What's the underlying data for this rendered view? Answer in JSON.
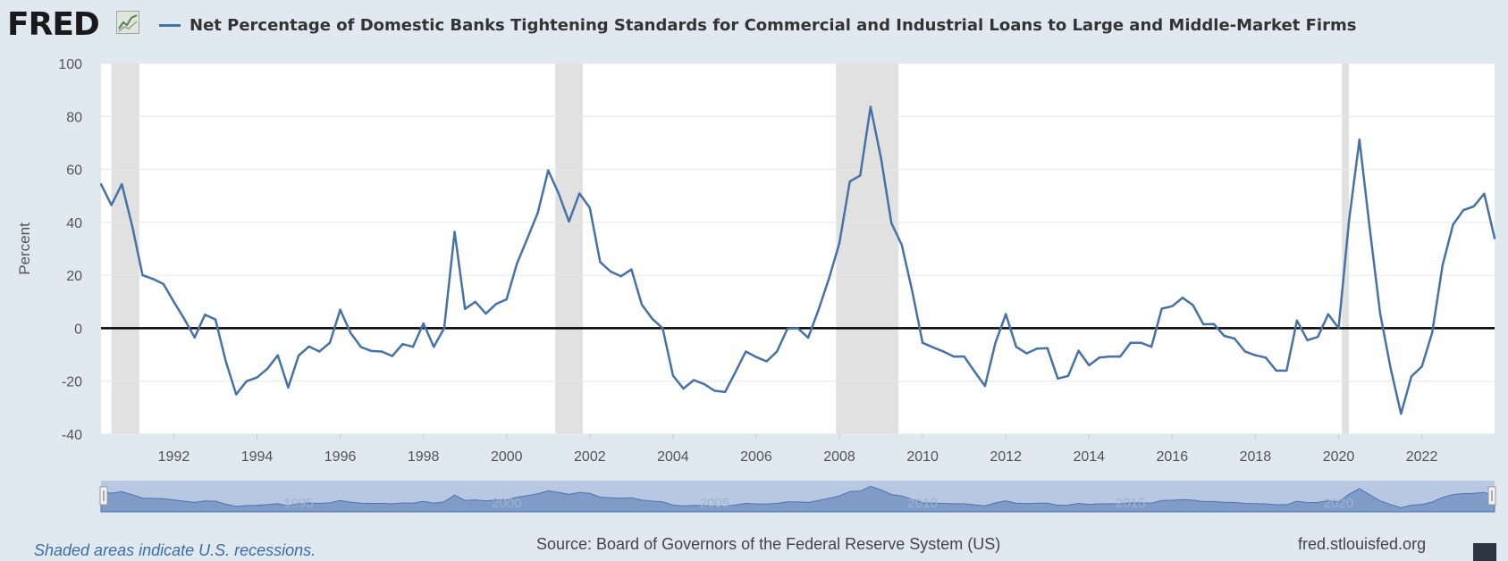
{
  "header": {
    "logo_text": "FRED",
    "title": "Net Percentage of Domestic Banks Tightening Standards for Commercial and Industrial Loans to Large and Middle-Market Firms"
  },
  "footer": {
    "recession_note": "Shaded areas indicate U.S. recessions.",
    "source": "Source: Board of Governors of the Federal Reserve System (US)",
    "site": "fred.stlouisfed.org"
  },
  "icons": {
    "logo_graph": "line-chart-icon",
    "fullscreen": "fullscreen-icon",
    "range_handles": "drag-handle-icon"
  },
  "colors": {
    "line": "#4572a7",
    "recession": "#e1e1e1",
    "background": "#e1e9f0",
    "zero_line": "#000000"
  },
  "chart_data": {
    "type": "line",
    "ylabel": "Percent",
    "ylim": [
      -40,
      100
    ],
    "yticks": [
      -40,
      -20,
      0,
      20,
      40,
      60,
      80,
      100
    ],
    "xlim": [
      1990.25,
      2023.75
    ],
    "xticks": [
      "1992",
      "1994",
      "1996",
      "1998",
      "2000",
      "2002",
      "2004",
      "2006",
      "2008",
      "2010",
      "2012",
      "2014",
      "2016",
      "2018",
      "2020",
      "2022"
    ],
    "navigator_labels": [
      "1995",
      "2000",
      "2005",
      "2010",
      "2015",
      "2020"
    ],
    "grid": true,
    "recessions": [
      [
        1990.5,
        1991.17
      ],
      [
        2001.17,
        2001.83
      ],
      [
        2007.92,
        2009.42
      ],
      [
        2020.08,
        2020.25
      ]
    ],
    "series": [
      {
        "name": "Net Percentage of Domestic Banks Tightening Standards for Commercial and Industrial Loans to Large and Middle-Market Firms",
        "x": [
          1990.25,
          1990.5,
          1990.75,
          1991.0,
          1991.25,
          1991.5,
          1991.75,
          1992.0,
          1992.25,
          1992.5,
          1992.75,
          1993.0,
          1993.25,
          1993.5,
          1993.75,
          1994.0,
          1994.25,
          1994.5,
          1994.75,
          1995.0,
          1995.25,
          1995.5,
          1995.75,
          1996.0,
          1996.25,
          1996.5,
          1996.75,
          1997.0,
          1997.25,
          1997.5,
          1997.75,
          1998.0,
          1998.25,
          1998.5,
          1998.75,
          1999.0,
          1999.25,
          1999.5,
          1999.75,
          2000.0,
          2000.25,
          2000.5,
          2000.75,
          2001.0,
          2001.25,
          2001.5,
          2001.75,
          2002.0,
          2002.25,
          2002.5,
          2002.75,
          2003.0,
          2003.25,
          2003.5,
          2003.75,
          2004.0,
          2004.25,
          2004.5,
          2004.75,
          2005.0,
          2005.25,
          2005.5,
          2005.75,
          2006.0,
          2006.25,
          2006.5,
          2006.75,
          2007.0,
          2007.25,
          2007.5,
          2007.75,
          2008.0,
          2008.25,
          2008.5,
          2008.75,
          2009.0,
          2009.25,
          2009.5,
          2009.75,
          2010.0,
          2010.25,
          2010.5,
          2010.75,
          2011.0,
          2011.25,
          2011.5,
          2011.75,
          2012.0,
          2012.25,
          2012.5,
          2012.75,
          2013.0,
          2013.25,
          2013.5,
          2013.75,
          2014.0,
          2014.25,
          2014.5,
          2014.75,
          2015.0,
          2015.25,
          2015.5,
          2015.75,
          2016.0,
          2016.25,
          2016.5,
          2016.75,
          2017.0,
          2017.25,
          2017.5,
          2017.75,
          2018.0,
          2018.25,
          2018.5,
          2018.75,
          2019.0,
          2019.25,
          2019.5,
          2019.75,
          2020.0,
          2020.25,
          2020.5,
          2020.75,
          2021.0,
          2021.25,
          2021.5,
          2021.75,
          2022.0,
          2022.25,
          2022.5,
          2022.75,
          2023.0,
          2023.25,
          2023.5,
          2023.75
        ],
        "y": [
          54.4,
          46.5,
          54.4,
          38.6,
          20.0,
          18.6,
          16.7,
          10.0,
          3.6,
          -3.5,
          5.1,
          3.3,
          -12.5,
          -25.0,
          -20.0,
          -18.6,
          -15.3,
          -10.2,
          -22.4,
          -10.3,
          -6.9,
          -8.8,
          -5.5,
          7.0,
          -1.8,
          -7.1,
          -8.6,
          -8.8,
          -10.5,
          -6.0,
          -7.0,
          1.8,
          -7.0,
          0.0,
          36.4,
          7.3,
          10.0,
          5.5,
          9.2,
          10.9,
          24.5,
          33.9,
          43.6,
          59.6,
          50.9,
          40.3,
          50.9,
          45.5,
          25.0,
          21.4,
          19.6,
          22.2,
          8.9,
          3.6,
          0.0,
          -17.9,
          -22.8,
          -19.6,
          -21.1,
          -23.6,
          -24.1,
          -16.6,
          -8.8,
          -10.9,
          -12.5,
          -8.8,
          -0.2,
          0.0,
          -3.6,
          7.1,
          18.8,
          32.1,
          55.4,
          57.7,
          83.6,
          64.2,
          39.7,
          31.5,
          14.0,
          -5.5,
          -7.2,
          -8.8,
          -10.7,
          -10.7,
          -16.4,
          -21.8,
          -5.5,
          5.3,
          -7.0,
          -9.5,
          -7.7,
          -7.5,
          -19.0,
          -18.0,
          -8.5,
          -14.0,
          -11.1,
          -10.7,
          -10.7,
          -5.5,
          -5.5,
          -7.0,
          7.4,
          8.3,
          11.5,
          8.7,
          1.5,
          1.6,
          -2.9,
          -3.9,
          -8.8,
          -10.2,
          -11.1,
          -16.0,
          -16.0,
          2.9,
          -4.5,
          -3.3,
          5.3,
          0.0,
          40.5,
          71.2,
          37.5,
          5.5,
          -15.1,
          -32.3,
          -18.2,
          -14.5,
          -1.6,
          23.8,
          39.1,
          44.6,
          46.0,
          50.8,
          34.0
        ]
      }
    ]
  }
}
